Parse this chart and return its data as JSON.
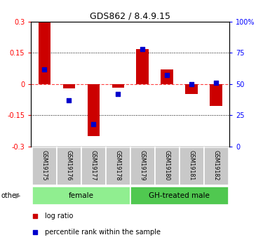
{
  "title": "GDS862 / 8.4.9.15",
  "samples": [
    "GSM19175",
    "GSM19176",
    "GSM19177",
    "GSM19178",
    "GSM19179",
    "GSM19180",
    "GSM19181",
    "GSM19182"
  ],
  "log_ratio": [
    0.3,
    -0.02,
    -0.25,
    -0.018,
    0.17,
    0.07,
    -0.048,
    -0.105
  ],
  "percentile_rank": [
    62,
    37,
    18,
    42,
    78,
    57,
    50,
    51
  ],
  "groups": [
    {
      "label": "female",
      "start": 0,
      "end": 4,
      "color": "#90EE90"
    },
    {
      "label": "GH-treated male",
      "start": 4,
      "end": 8,
      "color": "#50C850"
    }
  ],
  "left_ylim": [
    -0.3,
    0.3
  ],
  "right_ylim": [
    0,
    100
  ],
  "left_yticks": [
    -0.3,
    -0.15,
    0,
    0.15,
    0.3
  ],
  "right_yticks": [
    0,
    25,
    50,
    75,
    100
  ],
  "left_yticklabels": [
    "-0.3",
    "-0.15",
    "0",
    "0.15",
    "0.3"
  ],
  "right_yticklabels": [
    "0",
    "25",
    "50",
    "75",
    "100%"
  ],
  "bar_color": "#CC0000",
  "dot_color": "#0000CC",
  "zero_line_color": "#FF4444",
  "grid_color": "#333333",
  "legend_log": "log ratio",
  "legend_pct": "percentile rank within the sample",
  "other_label": "other",
  "bar_width": 0.5,
  "dot_size": 18
}
